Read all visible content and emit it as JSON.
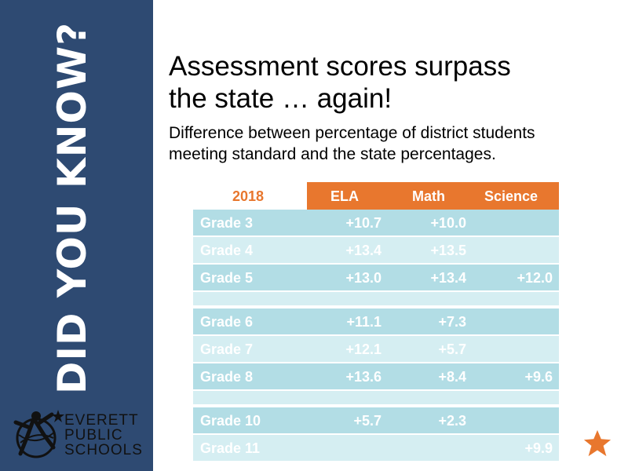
{
  "sidebar": {
    "vertical_text": "DID YOU KNOW?"
  },
  "logo": {
    "line1": "EVERETT",
    "line2": "PUBLIC",
    "line3": "SCHOOLS"
  },
  "title": {
    "line1": "Assessment scores surpass",
    "line2": "the state … again!"
  },
  "subtitle": {
    "line1": "Difference between percentage of district students",
    "line2": "meeting standard and the state percentages."
  },
  "table": {
    "year": "2018",
    "columns": [
      "ELA",
      "Math",
      "Science"
    ],
    "rows": [
      {
        "label": "Grade 3",
        "ela": "+10.7",
        "math": "+10.0",
        "science": ""
      },
      {
        "label": "Grade 4",
        "ela": "+13.4",
        "math": "+13.5",
        "science": ""
      },
      {
        "label": "Grade 5",
        "ela": "+13.0",
        "math": "+13.4",
        "science": "+12.0"
      },
      {
        "label": "Grade 6",
        "ela": "+11.1",
        "math": "+7.3",
        "science": ""
      },
      {
        "label": "Grade 7",
        "ela": "+12.1",
        "math": "+5.7",
        "science": ""
      },
      {
        "label": "Grade 8",
        "ela": "+13.6",
        "math": "+8.4",
        "science": "+9.6"
      },
      {
        "label": "Grade 10",
        "ela": "+5.7",
        "math": "+2.3",
        "science": ""
      },
      {
        "label": "Grade 11",
        "ela": "",
        "math": "",
        "science": "+9.9"
      }
    ]
  },
  "colors": {
    "sidebar": "#2e4a72",
    "accent": "#e8772e",
    "row_dark": "#b2dde5",
    "row_light": "#d5eef2"
  }
}
